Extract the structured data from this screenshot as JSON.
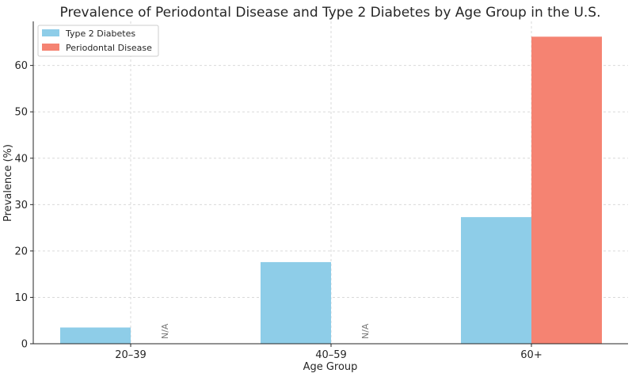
{
  "chart_data": {
    "type": "bar",
    "title": "Prevalence of Periodontal Disease and Type 2 Diabetes by Age Group in the U.S.",
    "xlabel": "Age Group",
    "ylabel": "Prevalence (%)",
    "categories": [
      "20–39",
      "40–59",
      "60+"
    ],
    "series": [
      {
        "name": "Type 2 Diabetes",
        "color": "#8ecde8",
        "values": [
          3.5,
          17.6,
          27.3
        ]
      },
      {
        "name": "Periodontal Disease",
        "color": "#f58372",
        "values": [
          null,
          null,
          66.2
        ]
      }
    ],
    "missing_label": "N/A",
    "ylim": [
      0,
      69.5
    ],
    "yticks": [
      0,
      10,
      20,
      30,
      40,
      50,
      60
    ],
    "grid": true,
    "legend_position": "top-left"
  }
}
